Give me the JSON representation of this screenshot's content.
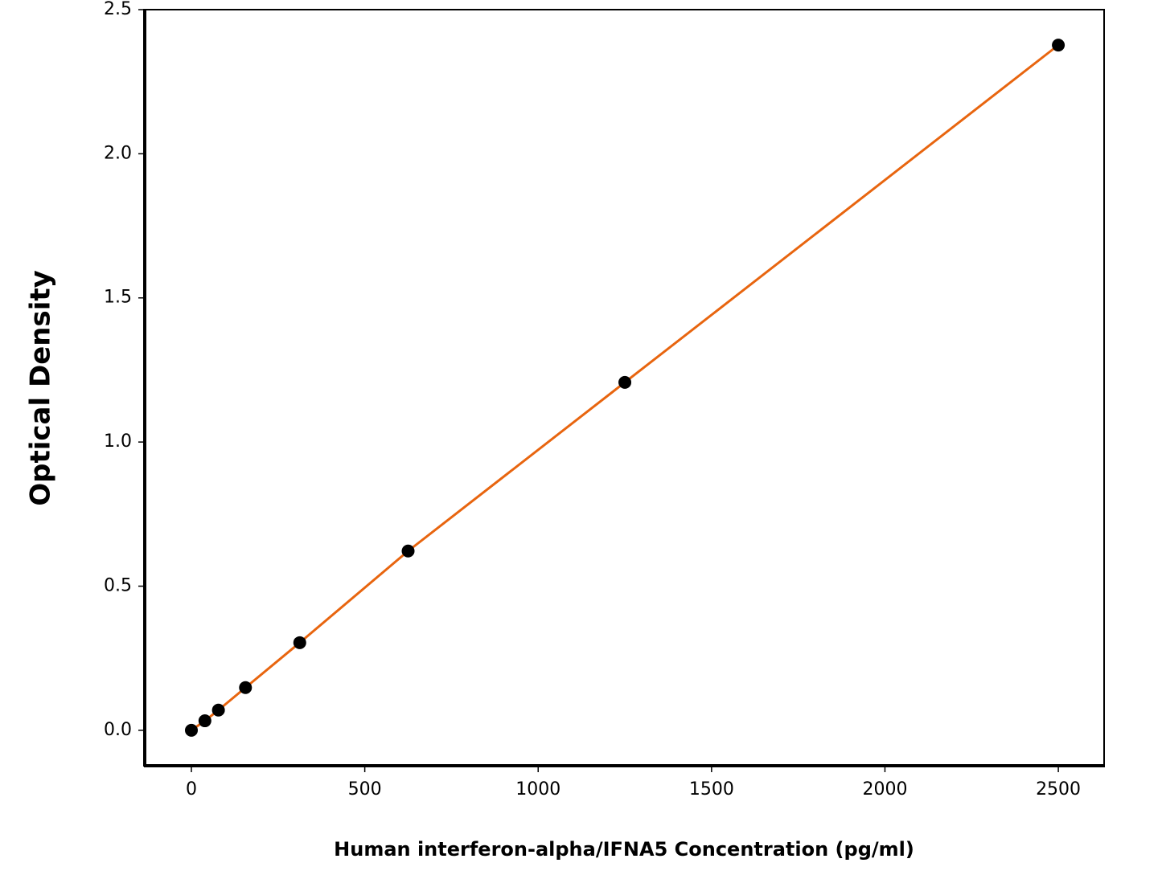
{
  "chart_data": {
    "type": "scatter",
    "x_label": "Human interferon-alpha/IFNA5 Concentration (pg/ml)",
    "y_label": "Optical Density",
    "series": [
      {
        "x": [
          0,
          39,
          78,
          156,
          312.5,
          625,
          1250,
          2500
        ],
        "values": [
          0,
          0.033,
          0.07,
          0.148,
          0.304,
          0.622,
          1.207,
          2.377
        ],
        "color": "#000000",
        "line_color": "#e8650f"
      }
    ],
    "xlim": [
      -134.5,
      2632
    ],
    "xticks": [
      0,
      500,
      1000,
      1500,
      2000,
      2500
    ],
    "ylim": [
      -0.123,
      2.5
    ],
    "yticks": [
      {
        "value": 0,
        "label": "0.0"
      },
      0.5,
      {
        "value": 1,
        "label": "1.0"
      },
      1.5,
      {
        "value": 2,
        "label": "2.0"
      },
      2.5
    ],
    "grid": false
  }
}
